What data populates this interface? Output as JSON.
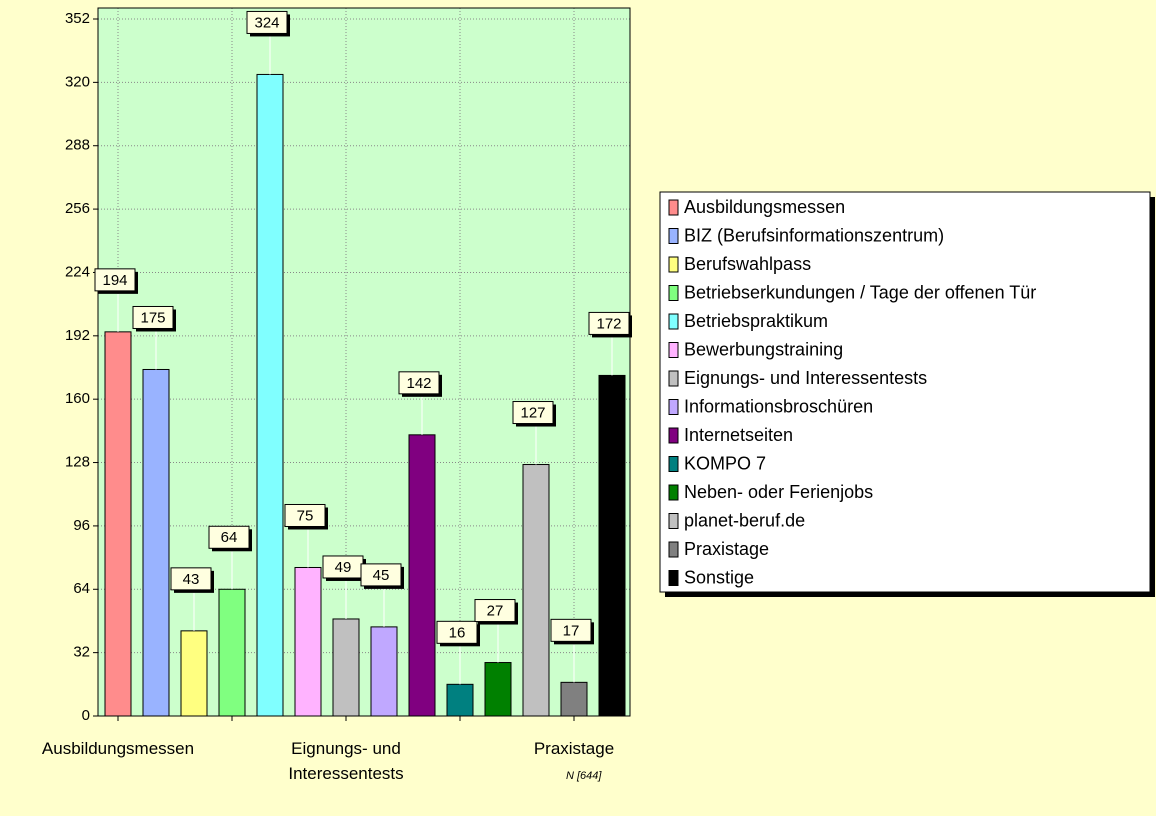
{
  "chart_data": {
    "type": "bar",
    "categories": [
      "Ausbildungsmessen",
      "BIZ (Berufsinformationszentrum)",
      "Berufswahlpass",
      "Betriebserkundungen / Tage der offenen Tür",
      "Betriebspraktikum",
      "Bewerbungstraining",
      "Eignungs- und Interessentests",
      "Informationsbroschüren",
      "Internetseiten",
      "KOMPO 7",
      "Neben- oder Ferienjobs",
      "planet-beruf.de",
      "Praxistage",
      "Sonstige"
    ],
    "values": [
      194,
      175,
      43,
      64,
      324,
      75,
      49,
      45,
      142,
      16,
      27,
      127,
      17,
      172
    ],
    "colors": [
      "#ff8c8c",
      "#99b3ff",
      "#ffff80",
      "#80ff80",
      "#80ffff",
      "#ffb3ff",
      "#c0c0c0",
      "#c0a8ff",
      "#800080",
      "#008080",
      "#008000",
      "#c0c0c0",
      "#808080",
      "#000000"
    ],
    "ylim": [
      0,
      352
    ],
    "yticks": [
      0,
      32,
      64,
      96,
      128,
      160,
      192,
      224,
      256,
      288,
      320,
      352
    ],
    "grid": true,
    "legend": "right",
    "annotation": "N [644]"
  }
}
